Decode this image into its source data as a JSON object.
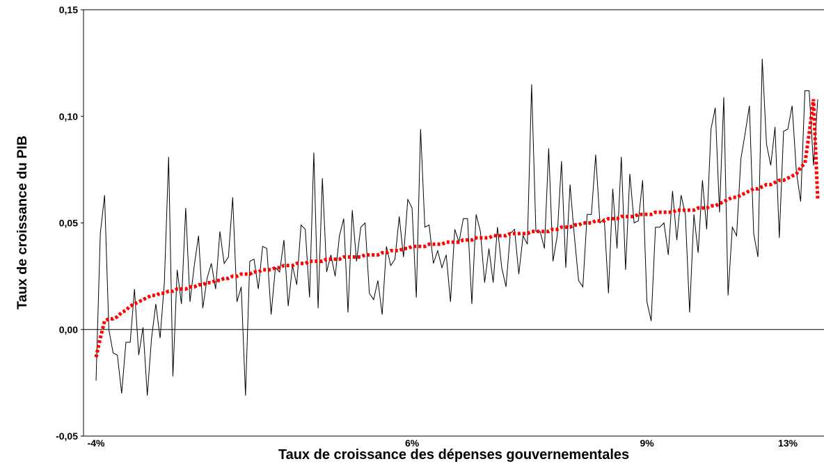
{
  "chart_data": {
    "type": "line",
    "xlabel": "Taux de croissance des dépenses gouvernementales",
    "ylabel": "Taux de croissance du PIB",
    "categories": [
      "-4%",
      null,
      null,
      null,
      null,
      null,
      null,
      null,
      null,
      null,
      null,
      null,
      null,
      null,
      null,
      null,
      null,
      null,
      null,
      null,
      null,
      null,
      null,
      null,
      null,
      null,
      null,
      null,
      null,
      null,
      null,
      null,
      null,
      null,
      null,
      null,
      null,
      null,
      null,
      null,
      null,
      null,
      null,
      null,
      null,
      null,
      null,
      null,
      null,
      null,
      null,
      null,
      null,
      null,
      null,
      null,
      null,
      null,
      null,
      null,
      null,
      null,
      null,
      null,
      null,
      null,
      null,
      null,
      null,
      null,
      null,
      null,
      null,
      null,
      "6%",
      null,
      null,
      null,
      null,
      null,
      null,
      null,
      null,
      null,
      null,
      null,
      null,
      null,
      null,
      null,
      null,
      null,
      null,
      null,
      null,
      null,
      null,
      null,
      null,
      null,
      null,
      null,
      null,
      null,
      null,
      null,
      null,
      null,
      null,
      null,
      null,
      null,
      null,
      null,
      null,
      null,
      null,
      null,
      null,
      null,
      null,
      null,
      null,
      null,
      null,
      null,
      null,
      null,
      null,
      "9%",
      null,
      null,
      null,
      null,
      null,
      null,
      null,
      null,
      null,
      null,
      null,
      null,
      null,
      null,
      null,
      null,
      null,
      null,
      null,
      null,
      null,
      null,
      null,
      null,
      null,
      null,
      null,
      null,
      null,
      null,
      null,
      null,
      "13%",
      null,
      null,
      null,
      null,
      null,
      null,
      null
    ],
    "series": [
      {
        "color": "#000000",
        "style": "solid",
        "values": [
          -0.024,
          0.045,
          0.063,
          0.0,
          -0.011,
          -0.012,
          -0.03,
          -0.006,
          -0.006,
          0.019,
          -0.012,
          0.001,
          -0.031,
          -0.004,
          0.012,
          -0.004,
          0.022,
          0.081,
          -0.022,
          0.028,
          0.012,
          0.057,
          0.013,
          0.03,
          0.044,
          0.01,
          0.024,
          0.031,
          0.019,
          0.046,
          0.031,
          0.034,
          0.062,
          0.013,
          0.02,
          -0.031,
          0.032,
          0.033,
          0.019,
          0.039,
          0.038,
          0.007,
          0.029,
          0.027,
          0.042,
          0.011,
          0.03,
          0.021,
          0.049,
          0.047,
          0.015,
          0.083,
          0.01,
          0.071,
          0.027,
          0.035,
          0.025,
          0.044,
          0.052,
          0.008,
          0.056,
          0.032,
          0.048,
          0.05,
          0.017,
          0.014,
          0.023,
          0.007,
          0.039,
          0.03,
          0.033,
          0.053,
          0.034,
          0.061,
          0.057,
          0.015,
          0.094,
          0.048,
          0.049,
          0.031,
          0.037,
          0.029,
          0.035,
          0.013,
          0.047,
          0.041,
          0.052,
          0.052,
          0.012,
          0.054,
          0.046,
          0.022,
          0.038,
          0.022,
          0.048,
          0.029,
          0.02,
          0.045,
          0.047,
          0.026,
          0.044,
          0.04,
          0.115,
          0.046,
          0.046,
          0.038,
          0.085,
          0.032,
          0.044,
          0.079,
          0.029,
          0.068,
          0.044,
          0.023,
          0.02,
          0.054,
          0.054,
          0.082,
          0.05,
          0.052,
          0.017,
          0.066,
          0.038,
          0.081,
          0.028,
          0.073,
          0.05,
          0.051,
          0.07,
          0.013,
          0.004,
          0.048,
          0.048,
          0.05,
          0.035,
          0.065,
          0.042,
          0.063,
          0.054,
          0.008,
          0.054,
          0.036,
          0.07,
          0.047,
          0.094,
          0.104,
          0.055,
          0.109,
          0.016,
          0.048,
          0.044,
          0.08,
          0.092,
          0.105,
          0.045,
          0.034,
          0.127,
          0.087,
          0.077,
          0.095,
          0.043,
          0.093,
          0.094,
          0.105,
          0.074,
          0.06,
          0.112,
          0.112,
          0.077,
          0.108
        ]
      },
      {
        "color": "#ff0000",
        "style": "dotted",
        "values": [
          -0.013,
          -0.004,
          0.004,
          0.005,
          0.005,
          0.006,
          0.008,
          0.009,
          0.011,
          0.012,
          0.013,
          0.014,
          0.015,
          0.016,
          0.016,
          0.017,
          0.017,
          0.018,
          0.018,
          0.019,
          0.019,
          0.019,
          0.02,
          0.02,
          0.021,
          0.021,
          0.022,
          0.022,
          0.023,
          0.023,
          0.024,
          0.024,
          0.025,
          0.025,
          0.026,
          0.026,
          0.026,
          0.027,
          0.027,
          0.028,
          0.028,
          0.028,
          0.029,
          0.029,
          0.03,
          0.03,
          0.03,
          0.031,
          0.031,
          0.031,
          0.032,
          0.032,
          0.032,
          0.032,
          0.033,
          0.033,
          0.033,
          0.033,
          0.034,
          0.034,
          0.034,
          0.034,
          0.034,
          0.035,
          0.035,
          0.035,
          0.035,
          0.036,
          0.036,
          0.037,
          0.037,
          0.037,
          0.038,
          0.038,
          0.039,
          0.039,
          0.039,
          0.039,
          0.04,
          0.04,
          0.04,
          0.04,
          0.041,
          0.041,
          0.041,
          0.041,
          0.042,
          0.042,
          0.042,
          0.043,
          0.043,
          0.043,
          0.043,
          0.044,
          0.044,
          0.044,
          0.044,
          0.045,
          0.045,
          0.045,
          0.045,
          0.045,
          0.046,
          0.046,
          0.046,
          0.046,
          0.046,
          0.047,
          0.047,
          0.048,
          0.048,
          0.048,
          0.049,
          0.049,
          0.05,
          0.05,
          0.05,
          0.051,
          0.051,
          0.051,
          0.052,
          0.052,
          0.052,
          0.053,
          0.053,
          0.053,
          0.053,
          0.054,
          0.054,
          0.054,
          0.054,
          0.055,
          0.055,
          0.055,
          0.055,
          0.055,
          0.056,
          0.056,
          0.056,
          0.056,
          0.056,
          0.057,
          0.057,
          0.057,
          0.058,
          0.058,
          0.059,
          0.06,
          0.061,
          0.062,
          0.062,
          0.063,
          0.064,
          0.065,
          0.066,
          0.066,
          0.067,
          0.068,
          0.068,
          0.069,
          0.07,
          0.07,
          0.071,
          0.072,
          0.073,
          0.076,
          0.078,
          0.092,
          0.108,
          0.061
        ]
      }
    ],
    "ylim": [
      -0.05,
      0.15
    ],
    "yticks": [
      {
        "value": -0.05,
        "label": "-0,05"
      },
      {
        "value": 0,
        "label": "0,00"
      },
      {
        "value": 0.05,
        "label": "0,05"
      },
      {
        "value": 0.1,
        "label": "0,10"
      },
      {
        "value": 0.15,
        "label": "0,15"
      }
    ],
    "zero_line": true,
    "grid": false
  }
}
